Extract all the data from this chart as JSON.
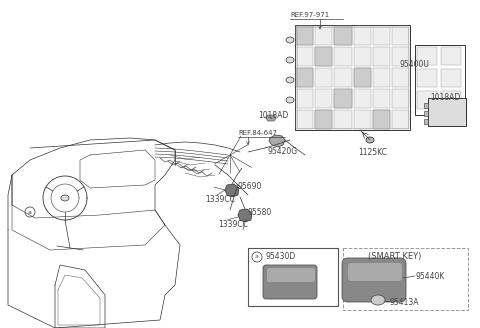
{
  "bg_color": "#ffffff",
  "fig_width": 4.8,
  "fig_height": 3.28,
  "dpi": 100,
  "text_color": "#444444",
  "line_color": "#666666",
  "part_color": "#888888",
  "dark_color": "#333333",
  "labels": {
    "ref_97_971": "REF.97-971",
    "ref_84_647": "REF.84-647",
    "l1018AD_center": "1018AD",
    "l95420G": "95420G",
    "l95400U": "95400U",
    "l1018AD_right": "1018AD",
    "l1125KC": "1125KC",
    "l95690": "95690",
    "l1339CC_left": "1339CC",
    "l95580": "95580",
    "l1339CC_bottom": "1339CC",
    "l95430D": "95430D",
    "l95440K": "95440K",
    "l95413A": "95413A",
    "smart_key": "(SMART KEY)",
    "circle_a": "a"
  },
  "font_size_small": 5.0,
  "font_size_label": 5.5,
  "font_size_ref": 5.0
}
